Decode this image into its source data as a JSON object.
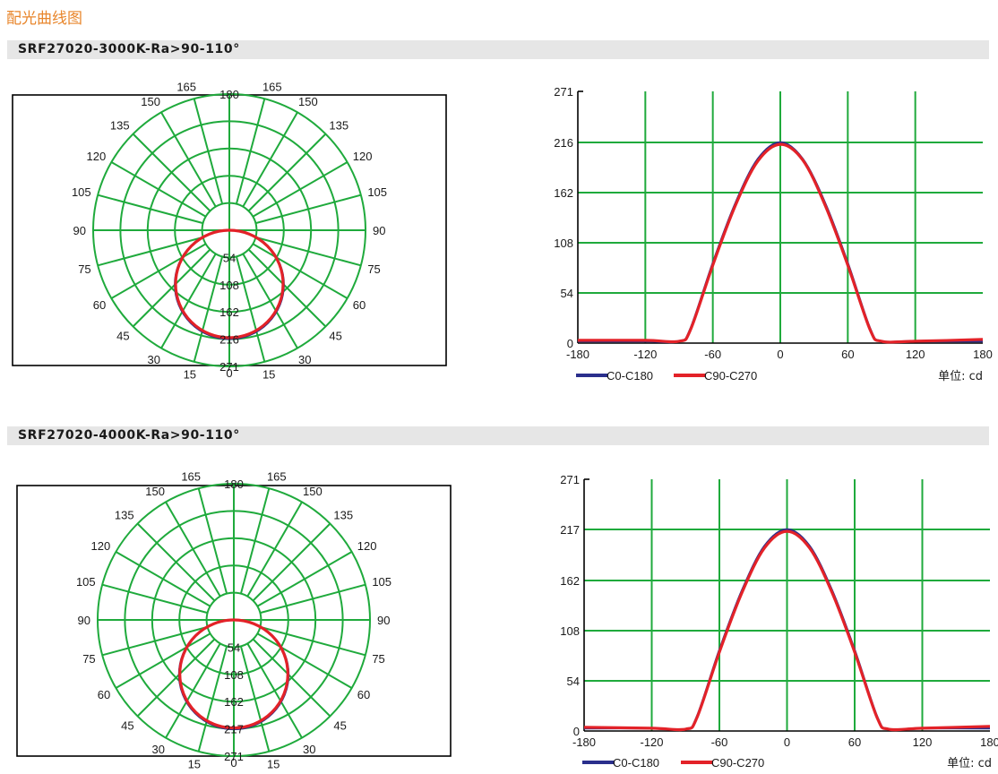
{
  "page_title": "配光曲线图",
  "colors": {
    "grid": "#1faa3c",
    "c0_c180": "#2a2f8c",
    "c90_c270": "#e32228",
    "title": "#e8862c",
    "section_bar": "#e6e6e6"
  },
  "sections": [
    {
      "label": "SRF27020-3000K-Ra>90-110°"
    },
    {
      "label": "SRF27020-4000K-Ra>90-110°"
    }
  ],
  "chart_data": [
    {
      "type": "polar",
      "angle_labels_left": [
        "15",
        "30",
        "45",
        "60",
        "75",
        "90",
        "105",
        "120",
        "135",
        "150",
        "165",
        "180"
      ],
      "angle_labels_right": [
        "0",
        "15",
        "30",
        "45",
        "60",
        "75",
        "90",
        "105",
        "120",
        "135",
        "150",
        "165"
      ],
      "radial_labels": [
        "54",
        "108",
        "162",
        "216",
        "271"
      ],
      "r_max": 271,
      "angle_step": 15,
      "series": [
        {
          "name": "C0-C180",
          "peak": 216,
          "beam_angle": 110
        },
        {
          "name": "C90-C270",
          "peak": 214,
          "beam_angle": 110
        }
      ]
    },
    {
      "type": "line",
      "x": [
        -180,
        -120,
        -90,
        -80,
        -60,
        -40,
        -20,
        0,
        20,
        40,
        60,
        80,
        90,
        120,
        180
      ],
      "x_ticks": [
        "-180",
        "-120",
        "-60",
        "0",
        "60",
        "120",
        "180"
      ],
      "y_ticks": [
        "0",
        "54",
        "108",
        "162",
        "216",
        "271"
      ],
      "ylim": [
        0,
        271
      ],
      "xlim": [
        -180,
        180
      ],
      "series": [
        {
          "name": "C0-C180",
          "values": [
            2,
            2,
            2,
            15,
            86,
            150,
            198,
            216,
            198,
            150,
            86,
            15,
            2,
            2,
            2
          ]
        },
        {
          "name": "C90-C270",
          "values": [
            3,
            3,
            2,
            14,
            84,
            148,
            196,
            214,
            197,
            148,
            84,
            14,
            2,
            2,
            4
          ]
        }
      ],
      "unit_label": "单位:",
      "unit": "cd"
    },
    {
      "type": "polar",
      "angle_labels_left": [
        "15",
        "30",
        "45",
        "60",
        "75",
        "90",
        "105",
        "120",
        "135",
        "150",
        "165",
        "180"
      ],
      "angle_labels_right": [
        "0",
        "15",
        "30",
        "45",
        "60",
        "75",
        "90",
        "105",
        "120",
        "135",
        "150",
        "165"
      ],
      "radial_labels": [
        "54",
        "108",
        "162",
        "217",
        "271"
      ],
      "r_max": 271,
      "angle_step": 15,
      "series": [
        {
          "name": "C0-C180",
          "peak": 217,
          "beam_angle": 110
        },
        {
          "name": "C90-C270",
          "peak": 215,
          "beam_angle": 110
        }
      ]
    },
    {
      "type": "line",
      "x": [
        -180,
        -120,
        -90,
        -80,
        -60,
        -40,
        -20,
        0,
        20,
        40,
        60,
        80,
        90,
        120,
        180
      ],
      "x_ticks": [
        "-180",
        "-120",
        "-60",
        "0",
        "60",
        "120",
        "180"
      ],
      "y_ticks": [
        "0",
        "54",
        "108",
        "162",
        "217",
        "271"
      ],
      "ylim": [
        0,
        271
      ],
      "xlim": [
        -180,
        180
      ],
      "series": [
        {
          "name": "C0-C180",
          "values": [
            3,
            3,
            2,
            15,
            87,
            151,
            199,
            217,
            199,
            151,
            87,
            15,
            2,
            3,
            3
          ]
        },
        {
          "name": "C90-C270",
          "values": [
            4,
            3,
            2,
            14,
            85,
            149,
            197,
            215,
            197,
            149,
            85,
            14,
            2,
            3,
            5
          ]
        }
      ],
      "unit_label": "单位:",
      "unit": "cd"
    }
  ]
}
